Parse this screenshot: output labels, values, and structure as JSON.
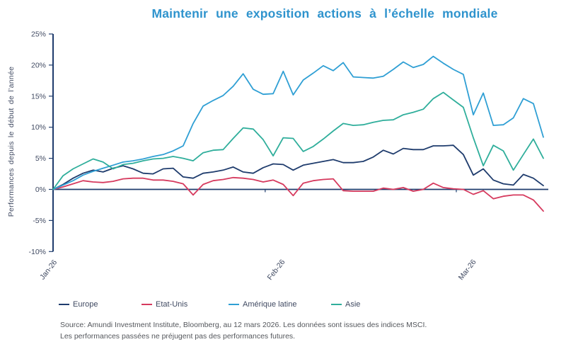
{
  "title": "Maintenir une exposition actions à l’échelle mondiale",
  "colors": {
    "title_accent": "#2e93cd",
    "axis": "#1f3c6d",
    "tick_label": "#404a62",
    "source_text": "#54575c"
  },
  "chart_data": {
    "type": "line",
    "title": "Maintenir une exposition actions à l’échelle mondiale",
    "ylabel": "Performances depuis le début de l’année",
    "xlabel": "",
    "ylim": [
      -10,
      25
    ],
    "grid": false,
    "legend_position": "bottom",
    "y_ticks": [
      {
        "value": 25,
        "label": "25%"
      },
      {
        "value": 20,
        "label": "20%"
      },
      {
        "value": 15,
        "label": "15%"
      },
      {
        "value": 10,
        "label": "10%"
      },
      {
        "value": 5,
        "label": "5%"
      },
      {
        "value": 0,
        "label": "0%"
      },
      {
        "value": -5,
        "label": "-5%"
      },
      {
        "value": -10,
        "label": "-10%"
      }
    ],
    "x_ticks": [
      {
        "index": 0,
        "label": "Jan-26"
      },
      {
        "index": 21.2,
        "label": "Feb-26"
      },
      {
        "index": 40.3,
        "label": "Mar-26"
      }
    ],
    "series": [
      {
        "id": "europe",
        "name": "Europe",
        "color": "#1f3c6d",
        "values": [
          0,
          0.8,
          1.8,
          2.6,
          3.1,
          2.8,
          3.4,
          3.8,
          3.3,
          2.6,
          2.5,
          3.3,
          3.4,
          2.0,
          1.8,
          2.6,
          2.8,
          3.1,
          3.6,
          2.8,
          2.6,
          3.5,
          4.1,
          4.0,
          3.1,
          3.9,
          4.2,
          4.5,
          4.8,
          4.3,
          4.3,
          4.5,
          5.2,
          6.3,
          5.7,
          6.6,
          6.4,
          6.4,
          7.0,
          7.0,
          7.1,
          5.6,
          2.3,
          3.3,
          1.5,
          0.9,
          0.7,
          2.4,
          1.8,
          0.6
        ]
      },
      {
        "id": "etat-unis",
        "name": "Etat-Unis",
        "color": "#d63a5e",
        "values": [
          0,
          0.4,
          0.9,
          1.4,
          1.2,
          1.1,
          1.3,
          1.7,
          1.8,
          1.8,
          1.5,
          1.5,
          1.3,
          0.9,
          -0.9,
          0.8,
          1.4,
          1.6,
          1.9,
          1.8,
          1.6,
          1.2,
          1.5,
          0.8,
          -1.0,
          1.0,
          1.4,
          1.6,
          1.7,
          -0.2,
          -0.3,
          -0.3,
          -0.3,
          0.2,
          0.0,
          0.3,
          -0.3,
          0.0,
          1.0,
          0.3,
          0.1,
          0.0,
          -0.8,
          -0.2,
          -1.5,
          -1.1,
          -0.9,
          -0.9,
          -1.7,
          -3.5
        ]
      },
      {
        "id": "amerique-latine",
        "name": "Amérique latine",
        "color": "#2f9fd4",
        "values": [
          0,
          0.7,
          1.4,
          2.3,
          2.9,
          3.4,
          3.9,
          4.4,
          4.6,
          4.9,
          5.3,
          5.6,
          6.2,
          7.0,
          10.6,
          13.4,
          14.3,
          15.1,
          16.6,
          18.6,
          16.1,
          15.3,
          15.4,
          19.0,
          15.2,
          17.6,
          18.7,
          19.9,
          19.1,
          20.4,
          18.1,
          18.0,
          17.9,
          18.2,
          19.3,
          20.5,
          19.6,
          20.1,
          21.4,
          20.3,
          19.3,
          18.5,
          12.0,
          15.5,
          10.3,
          10.4,
          11.5,
          14.6,
          13.8,
          8.4
        ]
      },
      {
        "id": "asie",
        "name": "Asie",
        "color": "#2fae9b",
        "values": [
          0,
          2.2,
          3.3,
          4.1,
          4.9,
          4.4,
          3.3,
          4.0,
          4.2,
          4.6,
          4.9,
          5.0,
          5.3,
          5.0,
          4.6,
          5.9,
          6.3,
          6.4,
          8.2,
          9.9,
          9.7,
          8.0,
          5.4,
          8.3,
          8.2,
          6.1,
          6.9,
          8.1,
          9.4,
          10.6,
          10.3,
          10.4,
          10.8,
          11.1,
          11.2,
          12.0,
          12.4,
          12.9,
          14.6,
          15.6,
          14.4,
          13.2,
          8.3,
          3.8,
          7.1,
          6.2,
          3.1,
          5.6,
          8.1,
          5.0
        ]
      }
    ]
  },
  "source": {
    "line1": "Source: Amundi Investment Institute, Bloomberg, au 12 mars 2026. Les données sont issues des indices MSCI.",
    "line2": "Les performances passées ne préjugent pas des performances futures."
  }
}
